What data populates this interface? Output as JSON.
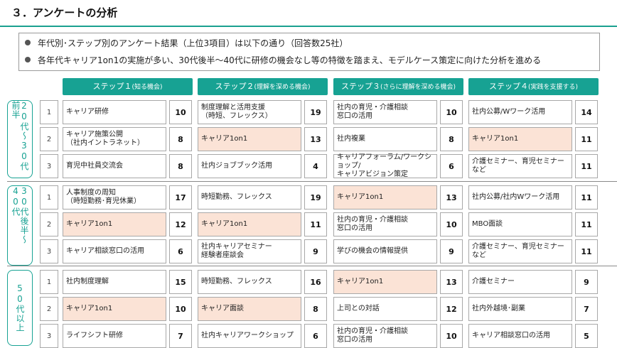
{
  "title": "３．アンケートの分析",
  "summary": [
    "年代別･ステップ別のアンケート結果（上位3項目）は以下の通り（回答数25社）",
    "各年代キャリア1on1の実施が多い、30代後半～40代に研修の機会なし等の特徴を踏まえ、モデルケース策定に向けた分析を進める"
  ],
  "steps": [
    {
      "label": "ステップ１",
      "sub": "(知る機会)"
    },
    {
      "label": "ステップ２",
      "sub": "(理解を深める機会)"
    },
    {
      "label": "ステップ３",
      "sub": "(さらに理解を深める機会)"
    },
    {
      "label": "ステップ４",
      "sub": "(実践を支援する)"
    }
  ],
  "age_groups": [
    {
      "label": "20代〜30代前半",
      "rows": [
        {
          "rank": "1",
          "cells": [
            {
              "text": "キャリア研修",
              "count": "10",
              "highlight": false
            },
            {
              "text": "制度理解と活用支援\n（時短、フレックス）",
              "count": "19",
              "highlight": false
            },
            {
              "text": "社内の育児・介護相談\n窓口の活用",
              "count": "10",
              "highlight": false
            },
            {
              "text": "社内公募/Wワーク活用",
              "count": "14",
              "highlight": false
            }
          ]
        },
        {
          "rank": "2",
          "cells": [
            {
              "text": "キャリア施策公開\n（社内イントラネット）",
              "count": "8",
              "highlight": false
            },
            {
              "text": "キャリア1on1",
              "count": "13",
              "highlight": true
            },
            {
              "text": "社内複業",
              "count": "8",
              "highlight": false
            },
            {
              "text": "キャリア1on1",
              "count": "11",
              "highlight": true
            }
          ]
        },
        {
          "rank": "3",
          "cells": [
            {
              "text": "育児中社員交流会",
              "count": "8",
              "highlight": false
            },
            {
              "text": "社内ジョブブック活用",
              "count": "4",
              "highlight": false
            },
            {
              "text": "キャリアフォーラム/ワークショップ/\nキャリアビジョン策定",
              "count": "6",
              "highlight": false
            },
            {
              "text": "介護セミナー、育児セミナーなど",
              "count": "11",
              "highlight": false
            }
          ]
        }
      ]
    },
    {
      "label": "30代後半〜40代",
      "rows": [
        {
          "rank": "1",
          "cells": [
            {
              "text": "人事制度の周知\n（時短勤務･育児休業）",
              "count": "17",
              "highlight": false
            },
            {
              "text": "時短勤務、フレックス",
              "count": "19",
              "highlight": false
            },
            {
              "text": "キャリア1on1",
              "count": "13",
              "highlight": true
            },
            {
              "text": "社内公募/社内Wワーク活用",
              "count": "11",
              "highlight": false
            }
          ]
        },
        {
          "rank": "2",
          "cells": [
            {
              "text": "キャリア1on1",
              "count": "12",
              "highlight": true
            },
            {
              "text": "キャリア1on1",
              "count": "11",
              "highlight": true
            },
            {
              "text": "社内の育児・介護相談\n窓口の活用",
              "count": "10",
              "highlight": false
            },
            {
              "text": "MBO面談",
              "count": "11",
              "highlight": false
            }
          ]
        },
        {
          "rank": "3",
          "cells": [
            {
              "text": "キャリア相談窓口の活用",
              "count": "6",
              "highlight": false
            },
            {
              "text": "社内キャリアセミナー\n経験者座談会",
              "count": "9",
              "highlight": false
            },
            {
              "text": "学びの機会の情報提供",
              "count": "9",
              "highlight": false
            },
            {
              "text": "介護セミナー、育児セミナーなど",
              "count": "11",
              "highlight": false
            }
          ]
        }
      ]
    },
    {
      "label": "50代以上",
      "rows": [
        {
          "rank": "1",
          "cells": [
            {
              "text": "社内制度理解",
              "count": "15",
              "highlight": false
            },
            {
              "text": "時短勤務、フレックス",
              "count": "16",
              "highlight": false
            },
            {
              "text": "キャリア1on1",
              "count": "13",
              "highlight": true
            },
            {
              "text": "介護セミナー",
              "count": "9",
              "highlight": false
            }
          ]
        },
        {
          "rank": "2",
          "cells": [
            {
              "text": "キャリア1on1",
              "count": "10",
              "highlight": true
            },
            {
              "text": "キャリア面談",
              "count": "8",
              "highlight": true
            },
            {
              "text": "上司との対話",
              "count": "12",
              "highlight": false
            },
            {
              "text": "社内外越境･副業",
              "count": "7",
              "highlight": false
            }
          ]
        },
        {
          "rank": "3",
          "cells": [
            {
              "text": "ライフシフト研修",
              "count": "7",
              "highlight": false
            },
            {
              "text": "社内キャリアワークショップ",
              "count": "6",
              "highlight": false
            },
            {
              "text": "社内の育児・介護相談\n窓口の活用",
              "count": "10",
              "highlight": false
            },
            {
              "text": "キャリア相談窓口の活用",
              "count": "5",
              "highlight": false
            }
          ]
        }
      ]
    }
  ],
  "colors": {
    "accent": "#17a293",
    "highlight": "#fbe3d6"
  }
}
